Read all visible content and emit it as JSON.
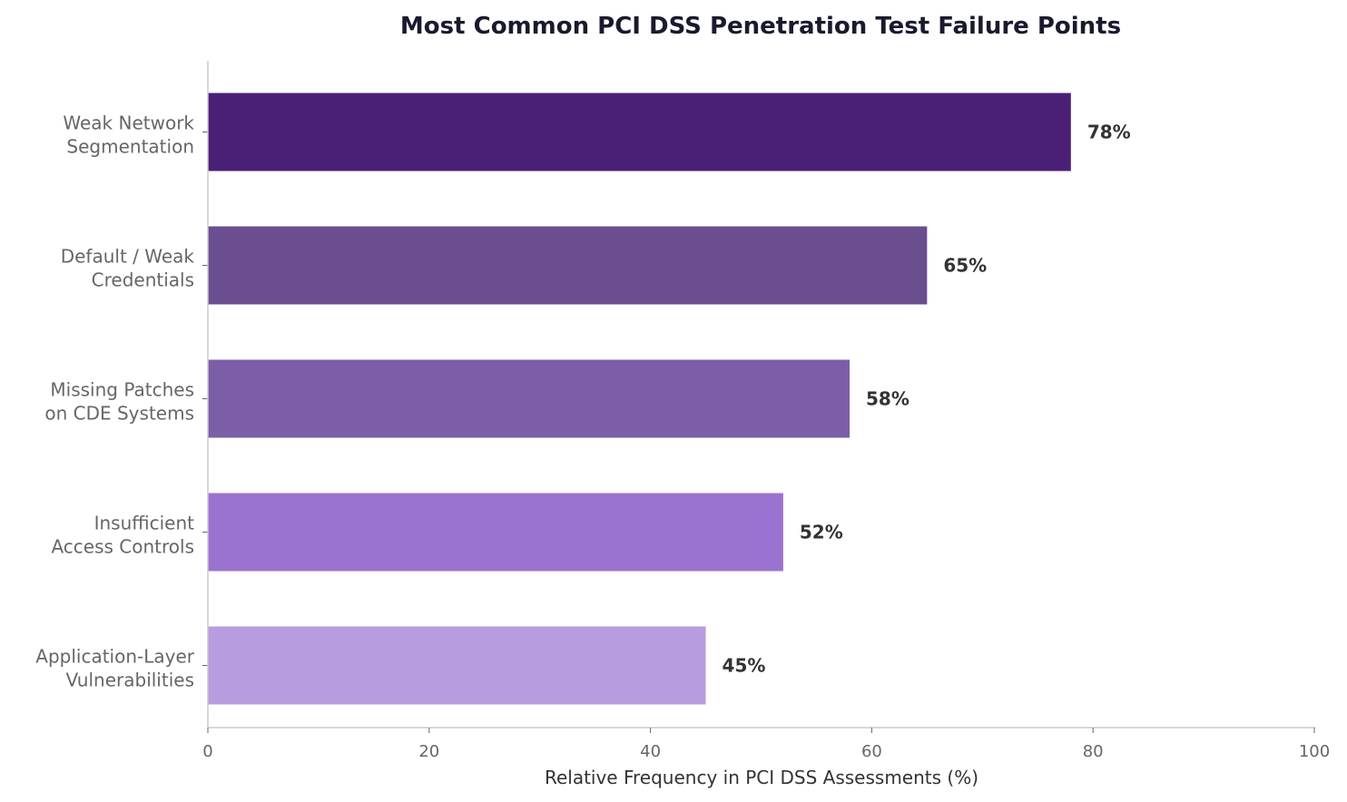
{
  "chart_data": {
    "type": "bar",
    "orientation": "horizontal",
    "title": "Most Common PCI DSS Penetration Test Failure Points",
    "xlabel": "Relative Frequency in PCI DSS Assessments (%)",
    "ylabel": "",
    "categories": [
      [
        "Weak Network",
        "Segmentation"
      ],
      [
        "Default / Weak",
        "Credentials"
      ],
      [
        "Missing Patches",
        "on CDE Systems"
      ],
      [
        "Insufficient",
        "Access Controls"
      ],
      [
        "Application-Layer",
        "Vulnerabilities"
      ]
    ],
    "values": [
      78,
      65,
      58,
      52,
      45
    ],
    "data_labels": [
      "78%",
      "65%",
      "58%",
      "52%",
      "45%"
    ],
    "colors": [
      "#4a2076",
      "#6a4e8f",
      "#7b5ea7",
      "#9b72cf",
      "#b79ddf"
    ],
    "xlim": [
      0,
      100
    ],
    "xticks": [
      0,
      20,
      40,
      60,
      80,
      100
    ],
    "grid": false,
    "legend": "none"
  }
}
